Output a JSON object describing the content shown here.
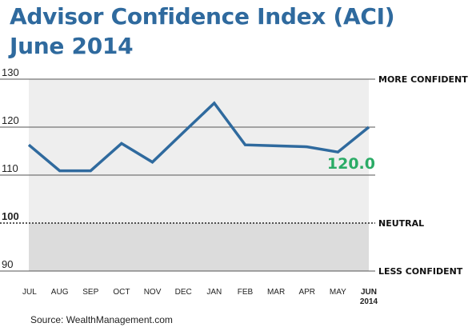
{
  "header": {
    "title_line1": "Advisor Confidence Index (ACI)",
    "title_line2": "June 2014"
  },
  "colors": {
    "title": "#2f6a9e",
    "line": "#2f6a9e",
    "highlight": "#2bab66",
    "upper_band": "#eeeeee",
    "lower_band": "#dcdcdc"
  },
  "chart_data": {
    "type": "line",
    "categories": [
      "JUL",
      "AUG",
      "SEP",
      "OCT",
      "NOV",
      "DEC",
      "JAN",
      "FEB",
      "MAR",
      "APR",
      "MAY",
      "JUN"
    ],
    "category_sublabels": [
      "",
      "",
      "",
      "",
      "",
      "",
      "",
      "",
      "",
      "",
      "",
      "2014"
    ],
    "values": [
      116.3,
      110.9,
      110.9,
      116.6,
      112.7,
      118.9,
      125.0,
      116.3,
      116.1,
      115.9,
      114.8,
      120.0
    ],
    "title": "Advisor Confidence Index (ACI) June 2014",
    "ylim": [
      90,
      130
    ],
    "yticks": [
      90,
      100,
      110,
      120,
      130
    ],
    "reference_line": {
      "value": 100,
      "style": "dotted"
    },
    "right_labels": [
      {
        "value": 130,
        "text": "MORE CONFIDENT"
      },
      {
        "value": 100,
        "text": "NEUTRAL"
      },
      {
        "value": 90,
        "text": "LESS CONFIDENT"
      }
    ],
    "highlight_label": "120.0",
    "grid": true
  },
  "footer": {
    "source": "Source: WealthManagement.com"
  }
}
